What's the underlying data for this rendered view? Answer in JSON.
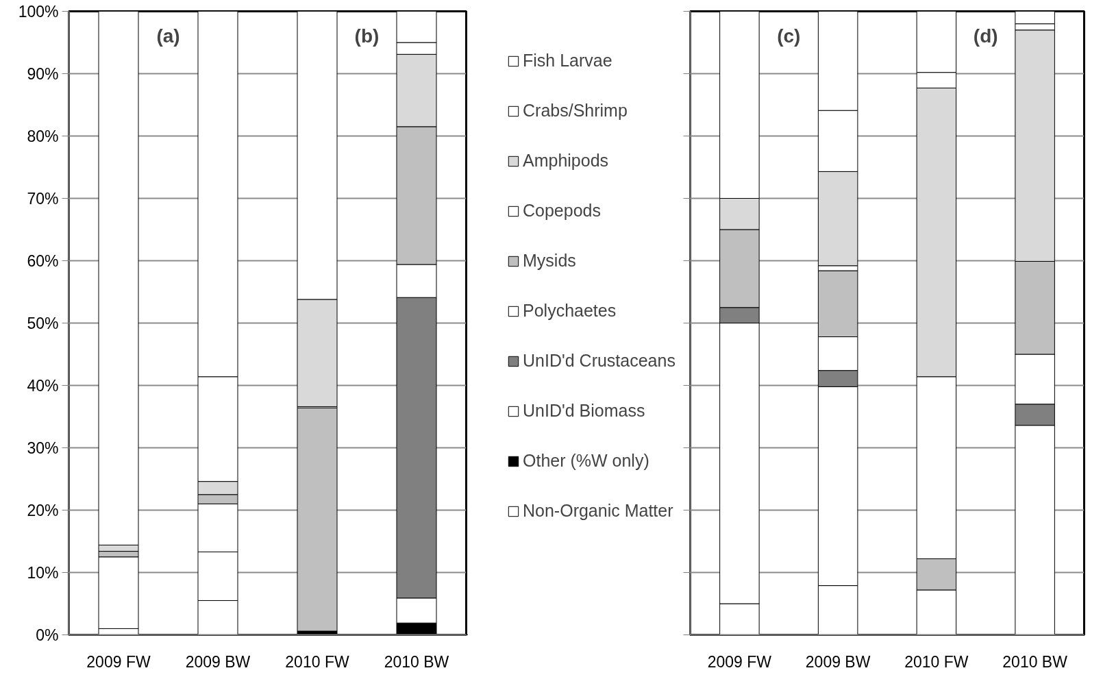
{
  "chart_data": [
    {
      "type": "bar",
      "stacked": true,
      "categories": [
        "2009 FW",
        "2009 BW",
        "2010 FW",
        "2010 BW"
      ],
      "annotations": [
        "(a)",
        "(b)"
      ],
      "ylim": [
        0,
        100
      ],
      "yticks": [
        {
          "value": 0,
          "label": "0%"
        },
        {
          "value": 10,
          "label": "10%"
        },
        {
          "value": 20,
          "label": "20%"
        },
        {
          "value": 30,
          "label": "30%"
        },
        {
          "value": 40,
          "label": "40%"
        },
        {
          "value": 50,
          "label": "50%"
        },
        {
          "value": 60,
          "label": "60%"
        },
        {
          "value": 70,
          "label": "70%"
        },
        {
          "value": 80,
          "label": "80%"
        },
        {
          "value": 90,
          "label": "90%"
        },
        {
          "value": 100,
          "label": "100%"
        }
      ],
      "grid": "y",
      "legend": "right",
      "series": [
        {
          "name": "Non-Organic Matter",
          "color": "#ffffff",
          "values": [
            1.0,
            5.5,
            null,
            null
          ]
        },
        {
          "name": "Other (%W only)",
          "color": "#000000",
          "values": [
            null,
            null,
            0.6,
            1.9
          ]
        },
        {
          "name": "UnID'd Biomass",
          "color": "#ffffff",
          "values": [
            11.5,
            7.8,
            null,
            4.0
          ]
        },
        {
          "name": "UnID'd Crustaceans",
          "color": "#808080",
          "values": [
            null,
            null,
            null,
            48.2
          ]
        },
        {
          "name": "Polychaetes",
          "color": "#ffffff",
          "values": [
            null,
            7.7,
            null,
            5.3
          ]
        },
        {
          "name": "Mysids",
          "color": "#bfbfbf",
          "values": [
            0.9,
            1.5,
            35.8,
            22.1
          ]
        },
        {
          "name": "Copepods",
          "color": "#ffffff",
          "values": [
            null,
            null,
            0.2,
            null
          ]
        },
        {
          "name": "Amphipods",
          "color": "#d9d9d9",
          "values": [
            1.0,
            2.1,
            17.2,
            11.6
          ]
        },
        {
          "name": "Crabs/Shrimp",
          "color": "#ffffff",
          "values": [
            null,
            16.8,
            null,
            1.9
          ]
        },
        {
          "name": "Fish Larvae",
          "color": "#ffffff",
          "values": [
            85.6,
            58.6,
            46.2,
            5.0
          ]
        }
      ]
    },
    {
      "type": "bar",
      "stacked": true,
      "categories": [
        "2009 FW",
        "2009 BW",
        "2010 FW",
        "2010 BW"
      ],
      "annotations": [
        "(c)",
        "(d)"
      ],
      "ylim": [
        0,
        100
      ],
      "yticks": [
        0,
        10,
        20,
        30,
        40,
        50,
        60,
        70,
        80,
        90,
        100
      ],
      "tick_labels": "x",
      "grid": "y",
      "series": [
        {
          "color": "#ffffff",
          "values": [
            5.0,
            7.9,
            null,
            null
          ]
        },
        {
          "color": "#000000",
          "values": [
            null,
            null,
            null,
            null
          ]
        },
        {
          "color": "#ffffff",
          "values": [
            45.0,
            31.9,
            7.2,
            33.6
          ]
        },
        {
          "color": "#808080",
          "values": [
            2.5,
            2.6,
            null,
            3.4
          ]
        },
        {
          "color": "#ffffff",
          "values": [
            null,
            5.4,
            null,
            8.0
          ]
        },
        {
          "color": "#bfbfbf",
          "values": [
            12.5,
            10.6,
            5.0,
            14.9
          ]
        },
        {
          "color": "#ffffff",
          "values": [
            null,
            0.8,
            29.2,
            null
          ]
        },
        {
          "color": "#d9d9d9",
          "values": [
            5.0,
            15.1,
            46.3,
            37.1
          ]
        },
        {
          "color": "#ffffff",
          "values": [
            null,
            9.8,
            2.5,
            1.0
          ]
        },
        {
          "color": "#ffffff",
          "values": [
            30.0,
            15.9,
            9.8,
            2.0
          ]
        }
      ]
    }
  ]
}
